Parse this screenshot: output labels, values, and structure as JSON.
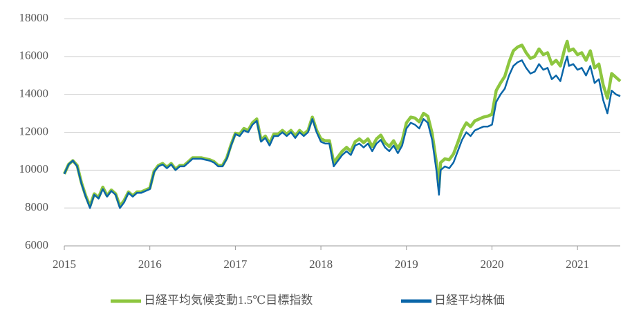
{
  "chart_data": {
    "type": "line",
    "x": [
      2015.0,
      2015.05,
      2015.1,
      2015.15,
      2015.2,
      2015.25,
      2015.3,
      2015.35,
      2015.4,
      2015.45,
      2015.5,
      2015.55,
      2015.6,
      2015.65,
      2015.7,
      2015.75,
      2015.8,
      2015.85,
      2015.9,
      2015.95,
      2016.0,
      2016.05,
      2016.1,
      2016.15,
      2016.2,
      2016.25,
      2016.3,
      2016.35,
      2016.4,
      2016.45,
      2016.5,
      2016.6,
      2016.7,
      2016.75,
      2016.8,
      2016.85,
      2016.9,
      2016.95,
      2017.0,
      2017.05,
      2017.1,
      2017.15,
      2017.2,
      2017.25,
      2017.3,
      2017.35,
      2017.4,
      2017.45,
      2017.5,
      2017.55,
      2017.6,
      2017.65,
      2017.7,
      2017.75,
      2017.8,
      2017.85,
      2017.9,
      2017.95,
      2018.0,
      2018.05,
      2018.1,
      2018.15,
      2018.2,
      2018.25,
      2018.3,
      2018.35,
      2018.4,
      2018.45,
      2018.5,
      2018.55,
      2018.6,
      2018.65,
      2018.7,
      2018.75,
      2018.8,
      2018.85,
      2018.9,
      2018.95,
      2019.0,
      2019.05,
      2019.1,
      2019.15,
      2019.2,
      2019.25,
      2019.3,
      2019.35,
      2019.38,
      2019.4,
      2019.45,
      2019.5,
      2019.55,
      2019.6,
      2019.65,
      2019.7,
      2019.75,
      2019.8,
      2019.85,
      2019.9,
      2019.95,
      2020.0,
      2020.05,
      2020.1,
      2020.15,
      2020.2,
      2020.25,
      2020.3,
      2020.35,
      2020.4,
      2020.45,
      2020.5,
      2020.55,
      2020.6,
      2020.65,
      2020.7,
      2020.75,
      2020.8,
      2020.85,
      2020.88,
      2020.9,
      2020.95,
      2021.0,
      2021.05,
      2021.1,
      2021.15,
      2021.2,
      2021.25,
      2021.3,
      2021.35,
      2021.4,
      2021.45,
      2021.5
    ],
    "series": [
      {
        "name": "日経平均気候変動1.5℃目標指数",
        "color": "#8dc63f",
        "values": [
          9800,
          10300,
          10500,
          10250,
          9350,
          8650,
          8100,
          8750,
          8550,
          9100,
          8650,
          8950,
          8750,
          8100,
          8400,
          8850,
          8650,
          8850,
          8850,
          8950,
          9050,
          9950,
          10250,
          10350,
          10150,
          10350,
          10050,
          10250,
          10250,
          10450,
          10650,
          10650,
          10550,
          10450,
          10250,
          10250,
          10650,
          11350,
          11950,
          11900,
          12200,
          12100,
          12500,
          12700,
          11600,
          11800,
          11400,
          11900,
          11900,
          12100,
          11900,
          12100,
          11800,
          12100,
          11900,
          12100,
          12800,
          12100,
          11650,
          11550,
          11550,
          10400,
          10700,
          11000,
          11200,
          11000,
          11500,
          11650,
          11450,
          11650,
          11250,
          11650,
          11850,
          11450,
          11250,
          11550,
          11150,
          11550,
          12500,
          12800,
          12750,
          12550,
          13000,
          12850,
          11950,
          10400,
          9100,
          10400,
          10600,
          10550,
          10850,
          11450,
          12100,
          12500,
          12300,
          12600,
          12700,
          12800,
          12850,
          12950,
          14200,
          14600,
          14950,
          15700,
          16300,
          16500,
          16600,
          16200,
          15900,
          16000,
          16400,
          16100,
          16200,
          15600,
          15800,
          15500,
          16400,
          16800,
          16300,
          16400,
          16100,
          16200,
          15800,
          16300,
          15400,
          15600,
          14500,
          13800,
          15100,
          14900,
          14700
        ]
      },
      {
        "name": "日経平均株価",
        "color": "#0a66a8",
        "values": [
          9800,
          10300,
          10500,
          10200,
          9300,
          8600,
          8000,
          8700,
          8500,
          9000,
          8600,
          8900,
          8700,
          8000,
          8300,
          8800,
          8600,
          8800,
          8800,
          8900,
          9000,
          9900,
          10200,
          10300,
          10100,
          10300,
          10000,
          10200,
          10200,
          10400,
          10600,
          10600,
          10500,
          10400,
          10200,
          10200,
          10600,
          11300,
          11900,
          11800,
          12100,
          12000,
          12400,
          12600,
          11500,
          11700,
          11300,
          11800,
          11800,
          12000,
          11800,
          12000,
          11700,
          12000,
          11800,
          12000,
          12700,
          12000,
          11500,
          11400,
          11400,
          10200,
          10500,
          10800,
          11000,
          10800,
          11300,
          11400,
          11200,
          11400,
          11000,
          11400,
          11600,
          11200,
          11000,
          11300,
          10900,
          11300,
          12200,
          12500,
          12400,
          12200,
          12700,
          12500,
          11600,
          10000,
          8700,
          10000,
          10200,
          10100,
          10400,
          11000,
          11600,
          12000,
          11800,
          12100,
          12200,
          12300,
          12300,
          12400,
          13600,
          14000,
          14300,
          15000,
          15500,
          15700,
          15800,
          15400,
          15100,
          15200,
          15600,
          15300,
          15400,
          14800,
          15000,
          14700,
          15600,
          16000,
          15500,
          15600,
          15300,
          15400,
          15000,
          15500,
          14600,
          14800,
          13700,
          13000,
          14200,
          14000,
          13900
        ]
      }
    ],
    "xlim": [
      2015,
      2021.5
    ],
    "xticks": [
      2015,
      2016,
      2017,
      2018,
      2019,
      2020,
      2021
    ],
    "ylim": [
      6000,
      18000
    ],
    "yticks": [
      6000,
      8000,
      10000,
      12000,
      14000,
      16000,
      18000
    ],
    "grid": true
  }
}
